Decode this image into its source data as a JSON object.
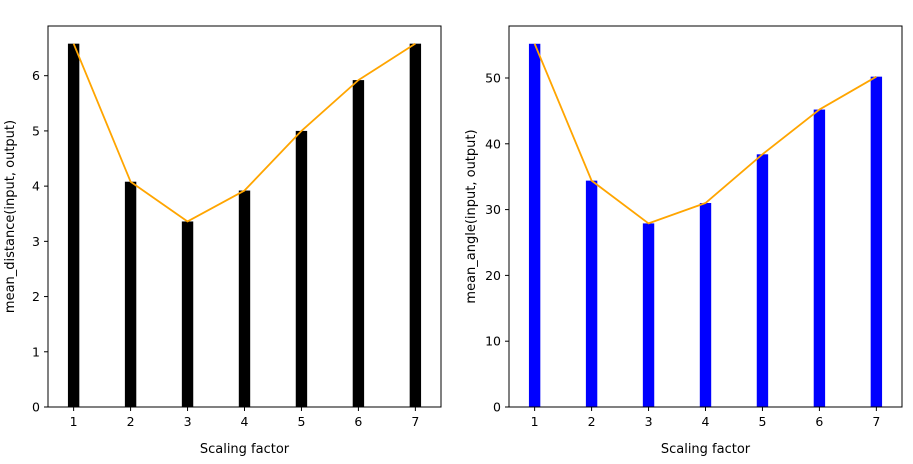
{
  "chart_data": [
    {
      "type": "bar",
      "xlabel": "Scaling factor",
      "ylabel": "mean_distance(input, output)",
      "x": [
        1,
        2,
        3,
        4,
        5,
        6,
        7
      ],
      "xticks": [
        "1",
        "2",
        "3",
        "4",
        "5",
        "6",
        "7"
      ],
      "values": [
        6.58,
        4.08,
        3.36,
        3.92,
        5.0,
        5.92,
        6.58
      ],
      "line_values": [
        6.58,
        4.08,
        3.36,
        3.92,
        5.0,
        5.92,
        6.58
      ],
      "ylim": [
        0,
        6.9
      ],
      "yticks": [
        0,
        1,
        2,
        3,
        4,
        5,
        6
      ],
      "bar_color": "#000000",
      "line_color": "#FFA500",
      "grid": false
    },
    {
      "type": "bar",
      "xlabel": "Scaling factor",
      "ylabel": "mean_angle(input, output)",
      "x": [
        1,
        2,
        3,
        4,
        5,
        6,
        7
      ],
      "xticks": [
        "1",
        "2",
        "3",
        "4",
        "5",
        "6",
        "7"
      ],
      "values": [
        55.2,
        34.4,
        27.9,
        31.0,
        38.4,
        45.2,
        50.2
      ],
      "line_values": [
        55.2,
        34.4,
        27.9,
        31.0,
        38.4,
        45.2,
        50.2
      ],
      "ylim": [
        0,
        57.9
      ],
      "yticks": [
        0,
        10,
        20,
        30,
        40,
        50
      ],
      "bar_color": "#0000FF",
      "line_color": "#FFA500",
      "grid": false
    }
  ]
}
